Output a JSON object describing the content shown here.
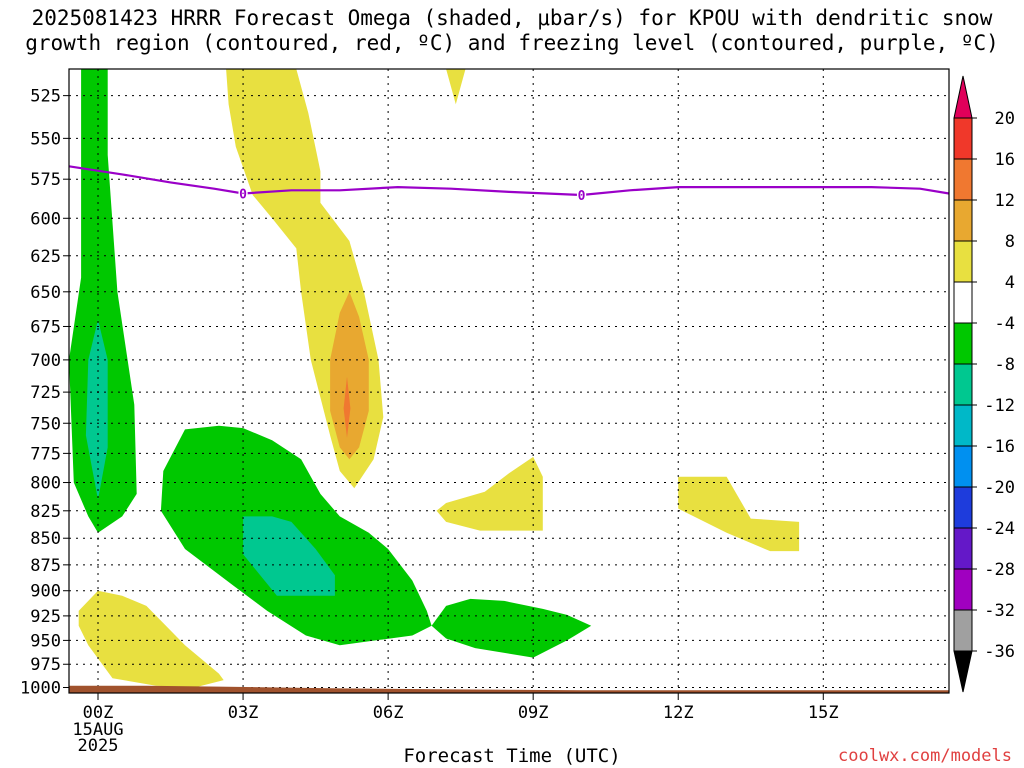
{
  "title_line1": "2025081423 HRRR Forecast Omega (shaded, μbar/s) for KPOU with dendritic snow",
  "title_line2": "growth region (contoured, red, ºC) and freezing level (contoured, purple, ºC)",
  "credit": "coolwx.com/models",
  "chart_data": {
    "type": "contour",
    "xlabel": "Forecast Time (UTC)",
    "ylabel": "",
    "x_ticks": [
      "00Z",
      "03Z",
      "06Z",
      "09Z",
      "12Z",
      "15Z"
    ],
    "x_tick_extra": [
      "15AUG",
      "2025"
    ],
    "x_range_hours": [
      -0.6,
      17.6
    ],
    "y_ticks": [
      525,
      550,
      575,
      600,
      625,
      650,
      675,
      700,
      725,
      750,
      775,
      800,
      825,
      850,
      875,
      900,
      925,
      950,
      975,
      1000
    ],
    "y_range_mb": [
      510,
      1006
    ],
    "y_scale": "log-pressure (inverted)",
    "grid": true,
    "colorbar": {
      "labels": [
        "20",
        "16",
        "12",
        "8",
        "4",
        "-4",
        "-8",
        "-12",
        "-16",
        "-20",
        "-24",
        "-28",
        "-32",
        "-36"
      ],
      "colors": [
        "#e0005a",
        "#f0382a",
        "#f07830",
        "#e8a830",
        "#e8e040",
        "#ffffff",
        "#00c800",
        "#00c890",
        "#00b8c8",
        "#0090f0",
        "#1e3cdc",
        "#6418c8",
        "#a000c0",
        "#a0a0a0",
        "#000000"
      ]
    },
    "freezing_level": {
      "contour_label": "0",
      "color": "#9a00c8",
      "points": [
        [
          -0.6,
          567
        ],
        [
          0.5,
          572
        ],
        [
          1.5,
          577
        ],
        [
          2.4,
          581
        ],
        [
          3.0,
          584
        ],
        [
          4.0,
          582
        ],
        [
          5.0,
          582
        ],
        [
          6.2,
          580
        ],
        [
          7.3,
          581
        ],
        [
          8.5,
          583
        ],
        [
          10.0,
          585
        ],
        [
          11.0,
          582
        ],
        [
          12.0,
          580
        ],
        [
          13.5,
          580
        ],
        [
          15.0,
          580
        ],
        [
          16.0,
          580
        ],
        [
          17.0,
          581
        ],
        [
          17.6,
          584
        ]
      ]
    },
    "omega_regions": [
      {
        "level": "-4 to -8",
        "color": "#00c800",
        "points": [
          [
            -0.35,
            505
          ],
          [
            -0.35,
            640
          ],
          [
            -0.6,
            700
          ],
          [
            -0.5,
            800
          ],
          [
            -0.2,
            830
          ],
          [
            0.0,
            845
          ],
          [
            0.5,
            830
          ],
          [
            0.8,
            810
          ],
          [
            0.75,
            735
          ],
          [
            0.4,
            650
          ],
          [
            0.2,
            560
          ],
          [
            0.2,
            505
          ]
        ]
      },
      {
        "level": "-8 to -12",
        "color": "#00c890",
        "points": [
          [
            0.0,
            670
          ],
          [
            -0.2,
            700
          ],
          [
            -0.25,
            760
          ],
          [
            0.0,
            815
          ],
          [
            0.2,
            770
          ],
          [
            0.2,
            700
          ]
        ]
      },
      {
        "level": "-4 to -8",
        "color": "#00c800",
        "points": [
          [
            1.3,
            825
          ],
          [
            1.35,
            790
          ],
          [
            1.8,
            755
          ],
          [
            2.5,
            752
          ],
          [
            3.0,
            754
          ],
          [
            3.6,
            764
          ],
          [
            4.2,
            780
          ],
          [
            4.6,
            810
          ],
          [
            5.0,
            830
          ],
          [
            5.6,
            845
          ],
          [
            6.0,
            860
          ],
          [
            6.5,
            890
          ],
          [
            6.8,
            920
          ],
          [
            6.9,
            935
          ],
          [
            6.5,
            945
          ],
          [
            5.0,
            955
          ],
          [
            4.3,
            945
          ],
          [
            3.5,
            920
          ],
          [
            2.8,
            895
          ],
          [
            1.8,
            860
          ]
        ]
      },
      {
        "level": "-8 to -12",
        "color": "#00c890",
        "points": [
          [
            3.0,
            830
          ],
          [
            3.0,
            865
          ],
          [
            3.7,
            905
          ],
          [
            4.9,
            905
          ],
          [
            4.9,
            885
          ],
          [
            4.5,
            860
          ],
          [
            4.0,
            835
          ],
          [
            3.6,
            830
          ]
        ]
      },
      {
        "level": "-4 to -8",
        "color": "#00c800",
        "points": [
          [
            6.9,
            935
          ],
          [
            7.2,
            915
          ],
          [
            7.7,
            908
          ],
          [
            8.4,
            910
          ],
          [
            9.2,
            918
          ],
          [
            9.7,
            924
          ],
          [
            10.2,
            935
          ],
          [
            9.7,
            950
          ],
          [
            9.0,
            968
          ],
          [
            7.8,
            958
          ],
          [
            7.2,
            948
          ]
        ]
      }
    ],
    "positive_regions": [
      {
        "level": "4 to 8",
        "color": "#e8e040",
        "points": [
          [
            -0.6,
            520
          ],
          [
            -0.6,
            520
          ]
        ]
      },
      {
        "level": "4 to 8",
        "color": "#e8e040",
        "points": [
          [
            2.65,
            505
          ],
          [
            4.1,
            505
          ],
          [
            4.35,
            535
          ],
          [
            4.6,
            570
          ],
          [
            4.6,
            590
          ],
          [
            5.2,
            615
          ],
          [
            5.5,
            650
          ],
          [
            5.8,
            700
          ],
          [
            5.9,
            745
          ],
          [
            5.7,
            780
          ],
          [
            5.3,
            805
          ],
          [
            5.0,
            790
          ],
          [
            4.8,
            760
          ],
          [
            4.4,
            700
          ],
          [
            4.2,
            650
          ],
          [
            4.1,
            620
          ],
          [
            3.6,
            600
          ],
          [
            3.2,
            585
          ],
          [
            2.85,
            555
          ],
          [
            2.7,
            530
          ]
        ]
      },
      {
        "level": "8 to 12",
        "color": "#e8a830",
        "points": [
          [
            5.2,
            650
          ],
          [
            5.4,
            668
          ],
          [
            5.6,
            700
          ],
          [
            5.6,
            740
          ],
          [
            5.4,
            770
          ],
          [
            5.2,
            780
          ],
          [
            5.0,
            770
          ],
          [
            4.8,
            740
          ],
          [
            4.8,
            700
          ],
          [
            5.0,
            665
          ]
        ]
      },
      {
        "level": "12 to 16",
        "color": "#f07830",
        "points": [
          [
            5.15,
            713
          ],
          [
            5.22,
            738
          ],
          [
            5.15,
            762
          ],
          [
            5.08,
            738
          ]
        ]
      },
      {
        "level": "4 to 8",
        "color": "#e8e040",
        "points": [
          [
            7.3,
            505
          ],
          [
            7.6,
            505
          ],
          [
            7.4,
            530
          ],
          [
            7.2,
            510
          ]
        ]
      },
      {
        "level": "4 to 8",
        "color": "#e8e040",
        "points": [
          [
            7.0,
            825
          ],
          [
            7.2,
            818
          ],
          [
            8.0,
            808
          ],
          [
            8.5,
            792
          ],
          [
            9.0,
            778
          ],
          [
            9.2,
            795
          ],
          [
            9.2,
            843
          ],
          [
            7.9,
            843
          ],
          [
            7.2,
            835
          ]
        ]
      },
      {
        "level": "4 to 8",
        "color": "#e8e040",
        "points": [
          [
            12.0,
            795
          ],
          [
            13.0,
            795
          ],
          [
            13.5,
            832
          ],
          [
            14.5,
            835
          ],
          [
            14.5,
            862
          ],
          [
            13.9,
            862
          ],
          [
            13.0,
            845
          ],
          [
            12.0,
            823
          ]
        ]
      },
      {
        "level": "4 to 8",
        "color": "#e8e040",
        "points": [
          [
            -0.4,
            920
          ],
          [
            0.0,
            900
          ],
          [
            0.5,
            905
          ],
          [
            1.0,
            915
          ],
          [
            1.8,
            955
          ],
          [
            2.5,
            985
          ],
          [
            2.6,
            992
          ],
          [
            2.0,
            1000
          ],
          [
            1.2,
            998
          ],
          [
            0.3,
            990
          ],
          [
            -0.2,
            955
          ],
          [
            -0.4,
            935
          ]
        ]
      }
    ],
    "terrain": {
      "color": "#a0522d",
      "points": [
        [
          -0.6,
          998
        ],
        [
          1.0,
          998
        ],
        [
          2.5,
          999
        ],
        [
          5.0,
          1001
        ],
        [
          7.0,
          1002
        ],
        [
          10.0,
          1003
        ],
        [
          17.6,
          1003
        ]
      ]
    }
  }
}
